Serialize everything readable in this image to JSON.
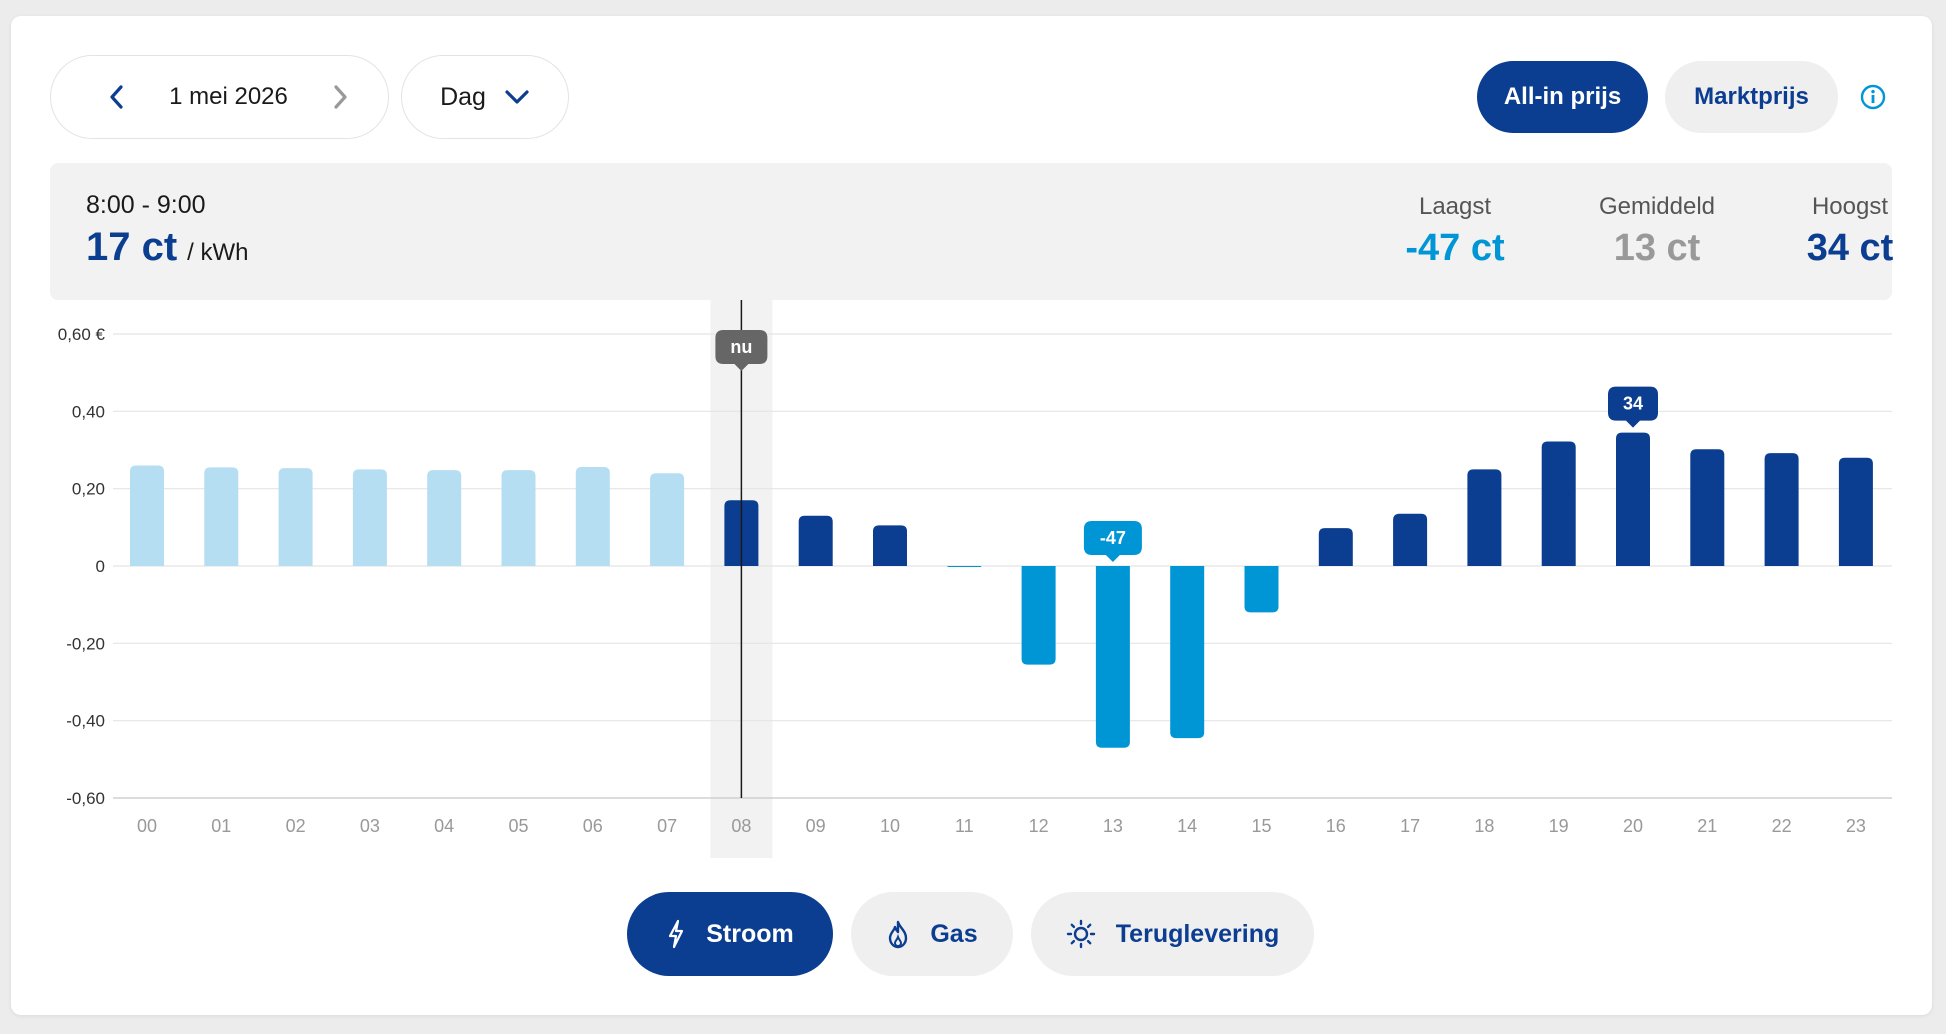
{
  "header": {
    "date_label": "1 mei 2026",
    "period_label": "Dag",
    "allin_label": "All-in prijs",
    "market_label": "Marktprijs"
  },
  "summary": {
    "time_range": "8:00 - 9:00",
    "current_price": "17 ct",
    "unit": "/ kWh",
    "lowest_label": "Laagst",
    "lowest_value": "-47 ct",
    "average_label": "Gemiddeld",
    "average_value": "13 ct",
    "highest_label": "Hoogst",
    "highest_value": "34 ct"
  },
  "tabs": {
    "stroom": "Stroom",
    "gas": "Gas",
    "terug": "Teruglevering"
  },
  "colors": {
    "dark_blue": "#0b3d91",
    "mid_blue": "#0096d6",
    "light_blue": "#b5def3",
    "muted_gray": "#999999"
  },
  "chart_data": {
    "type": "bar",
    "categories": [
      "00",
      "01",
      "02",
      "03",
      "04",
      "05",
      "06",
      "07",
      "08",
      "09",
      "10",
      "11",
      "12",
      "13",
      "14",
      "15",
      "16",
      "17",
      "18",
      "19",
      "20",
      "21",
      "22",
      "23"
    ],
    "values": [
      0.26,
      0.255,
      0.253,
      0.25,
      0.248,
      0.248,
      0.256,
      0.24,
      0.17,
      0.13,
      0.105,
      -0.003,
      -0.255,
      -0.47,
      -0.445,
      -0.12,
      0.098,
      0.135,
      0.25,
      0.322,
      0.345,
      0.302,
      0.292,
      0.28
    ],
    "ylim": [
      -0.6,
      0.6
    ],
    "yticks": [
      "0,60 €",
      "0,40",
      "0,20",
      "0",
      "-0,20",
      "-0,40",
      "-0,60"
    ],
    "current_index": 8,
    "current_marker_label": "nu",
    "min_marker_label": "-47",
    "max_marker_label": "34",
    "grid": true
  }
}
